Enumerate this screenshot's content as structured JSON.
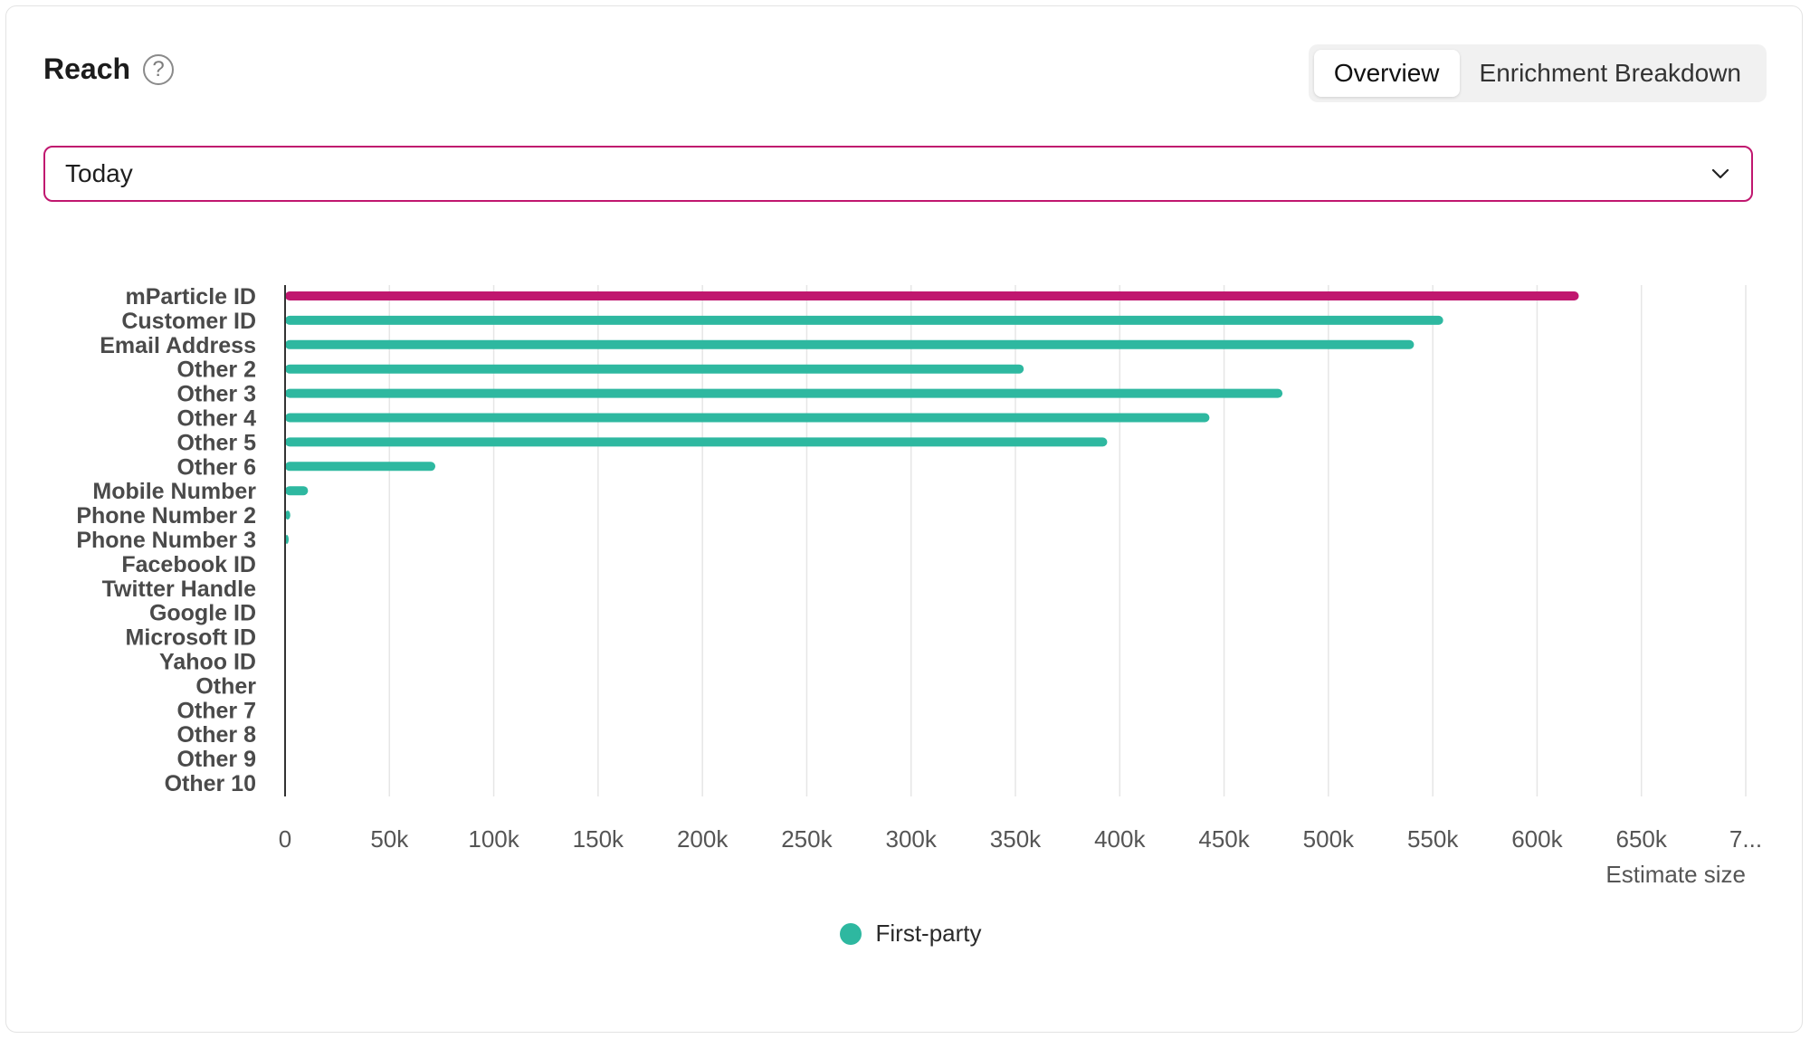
{
  "card": {
    "title": "Reach",
    "help_icon": "question-circle-icon"
  },
  "tabs": [
    {
      "label": "Overview",
      "active": true
    },
    {
      "label": "Enrichment Breakdown",
      "active": false
    }
  ],
  "date_select": {
    "value": "Today",
    "icon": "chevron-down-icon"
  },
  "colors": {
    "highlight": "#c0176f",
    "series": "#2eb8a0",
    "grid": "#e6e6e6",
    "axis": "#333333",
    "tick_text": "#555555",
    "category_text": "#4a4a4a"
  },
  "chart_data": {
    "type": "bar",
    "orientation": "horizontal",
    "categories": [
      "mParticle ID",
      "Customer ID",
      "Email Address",
      "Other 2",
      "Other 3",
      "Other 4",
      "Other 5",
      "Other 6",
      "Mobile Number",
      "Phone Number 2",
      "Phone Number 3",
      "Facebook ID",
      "Twitter Handle",
      "Google ID",
      "Microsoft ID",
      "Yahoo ID",
      "Other",
      "Other 7",
      "Other 8",
      "Other 9",
      "Other 10"
    ],
    "series": [
      {
        "name": "First-party",
        "values": [
          620000,
          555000,
          541000,
          354000,
          478000,
          443000,
          394000,
          72000,
          11000,
          2500,
          900,
          0,
          0,
          0,
          0,
          0,
          0,
          0,
          0,
          0,
          0
        ]
      }
    ],
    "highlighted_category": "mParticle ID",
    "xlim": [
      0,
      700000
    ],
    "x_ticks": [
      "0",
      "50k",
      "100k",
      "150k",
      "200k",
      "250k",
      "300k",
      "350k",
      "400k",
      "450k",
      "500k",
      "550k",
      "600k",
      "650k",
      "7..."
    ],
    "xlabel": "Estimate size",
    "ylabel": "",
    "grid": "vertical",
    "legend_position": "bottom-center"
  }
}
